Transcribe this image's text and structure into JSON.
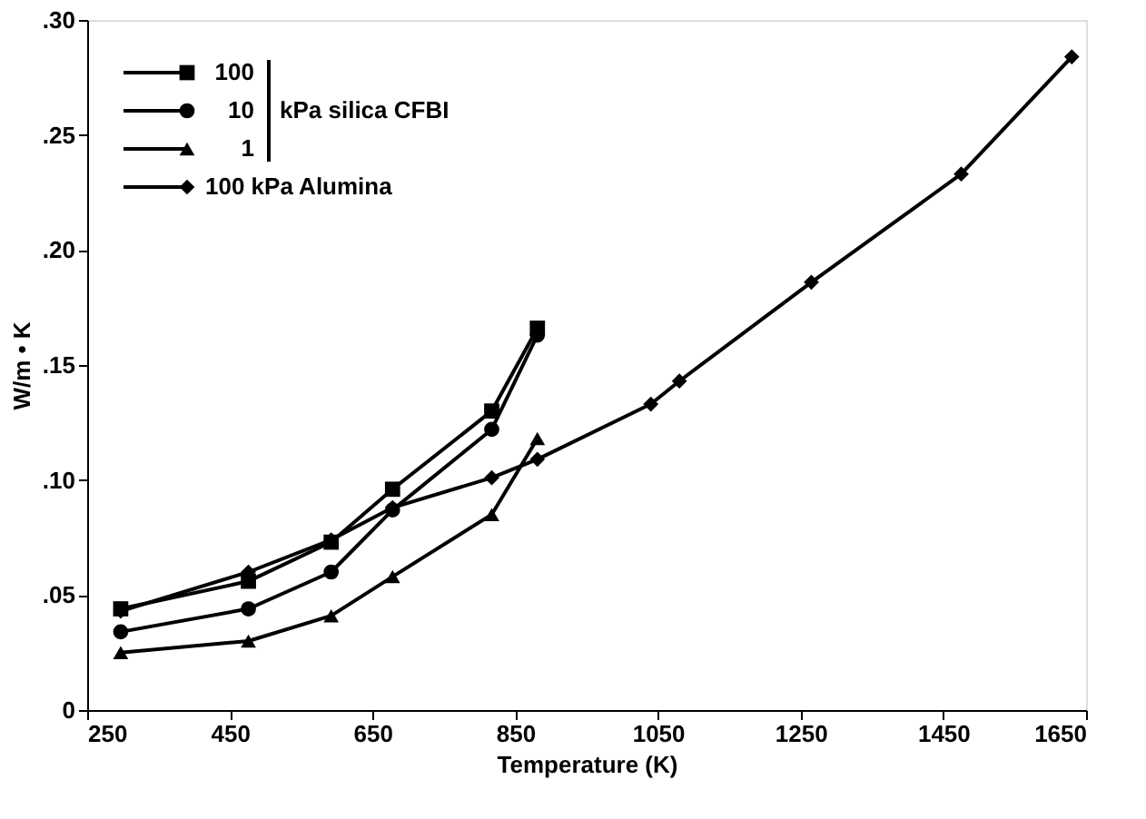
{
  "chart_data": {
    "type": "line",
    "xlabel": "Temperature (K)",
    "ylabel": "W/m • K",
    "xlim": [
      250,
      1650
    ],
    "xticks": [
      250,
      450,
      650,
      850,
      1050,
      1250,
      1450,
      1650
    ],
    "ylim": [
      0,
      0.3
    ],
    "yticks": [
      {
        "value": 0,
        "label": "0"
      },
      {
        "value": 0.05,
        "label": ".05"
      },
      {
        "value": 0.1,
        "label": ".10"
      },
      {
        "value": 0.15,
        "label": ".15"
      },
      {
        "value": 0.2,
        "label": ".20"
      },
      {
        "value": 0.25,
        "label": ".25"
      },
      {
        "value": 0.3,
        "label": ".30"
      }
    ],
    "series": [
      {
        "name": "100",
        "color": "#000000",
        "marker": "square",
        "x": [
          297,
          476,
          592,
          678,
          817,
          881
        ],
        "values": [
          0.044,
          0.056,
          0.073,
          0.096,
          0.13,
          0.166
        ]
      },
      {
        "name": "10",
        "color": "#000000",
        "marker": "circle",
        "x": [
          297,
          476,
          592,
          678,
          817,
          881
        ],
        "values": [
          0.034,
          0.044,
          0.06,
          0.087,
          0.122,
          0.163
        ]
      },
      {
        "name": "1",
        "color": "#000000",
        "marker": "triangle",
        "x": [
          297,
          476,
          592,
          678,
          817,
          881
        ],
        "values": [
          0.025,
          0.03,
          0.041,
          0.058,
          0.085,
          0.118
        ]
      },
      {
        "name": "100 kPa Alumina",
        "color": "#000000",
        "marker": "diamond",
        "x": [
          297,
          476,
          592,
          678,
          817,
          881,
          1040,
          1080,
          1265,
          1475,
          1630
        ],
        "values": [
          0.043,
          0.06,
          0.074,
          0.088,
          0.101,
          0.109,
          0.133,
          0.143,
          0.186,
          0.233,
          0.284
        ]
      }
    ],
    "annotations": [
      "kPa  silica CFBI"
    ],
    "legend": "top left",
    "grid": false,
    "line_style": "solid"
  }
}
